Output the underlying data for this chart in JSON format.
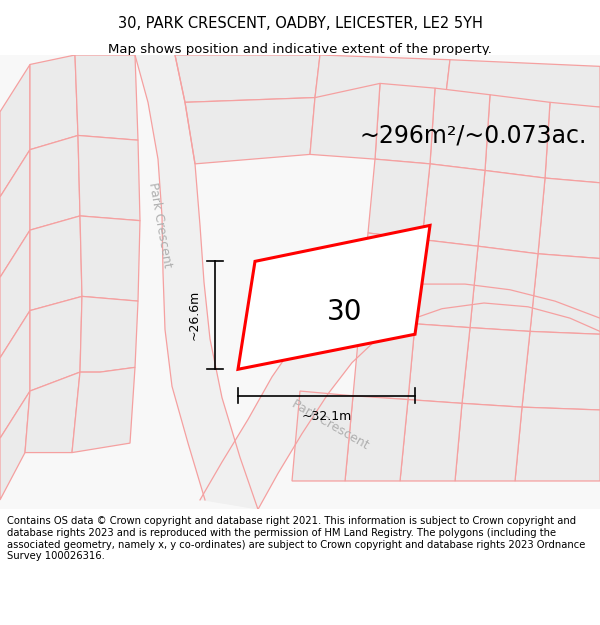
{
  "title_line1": "30, PARK CRESCENT, OADBY, LEICESTER, LE2 5YH",
  "title_line2": "Map shows position and indicative extent of the property.",
  "area_label": "~296m²/~0.073ac.",
  "property_number": "30",
  "dim_vertical": "~26.6m",
  "dim_horizontal": "~32.1m",
  "street_label_left": "Park Crescent",
  "street_label_bottom": "Park Crescent",
  "footer_text": "Contains OS data © Crown copyright and database right 2021. This information is subject to Crown copyright and database rights 2023 and is reproduced with the permission of HM Land Registry. The polygons (including the associated geometry, namely x, y co-ordinates) are subject to Crown copyright and database rights 2023 Ordnance Survey 100026316.",
  "map_bg": "#f8f8f8",
  "property_fill": "#ffffff",
  "property_edge": "#ff0000",
  "plot_fill": "#ebebeb",
  "road_color": "#e8e8e8",
  "road_line": "#f5a0a0",
  "title_fontsize": 10.5,
  "subtitle_fontsize": 9.5,
  "area_fontsize": 17,
  "number_fontsize": 20,
  "dim_fontsize": 9,
  "street_fontsize": 9,
  "footer_fontsize": 7.2
}
